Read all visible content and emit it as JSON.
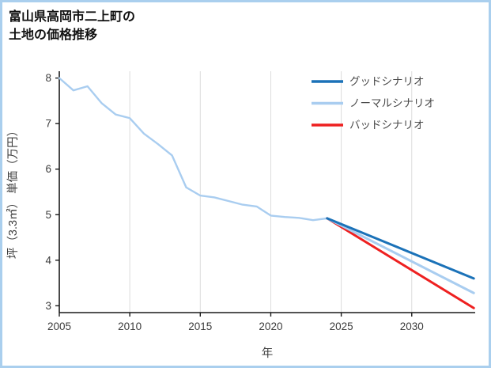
{
  "title": {
    "line1": "富山県高岡市二上町の",
    "line2": "土地の価格推移"
  },
  "frame": {
    "border_color": "#aacfee",
    "background": "#ffffff"
  },
  "chart_data": {
    "type": "line",
    "title": "富山県高岡市二上町の土地の価格推移",
    "xlabel": "年",
    "ylabel": "坪（3.3㎡） 単価（万円）",
    "xlim": [
      2005,
      2034.5
    ],
    "ylim": [
      2.85,
      8.15
    ],
    "x_ticks": [
      2005,
      2010,
      2015,
      2020,
      2025,
      2030
    ],
    "y_ticks": [
      3,
      4,
      5,
      6,
      7,
      8
    ],
    "grid": {
      "vertical": true,
      "horizontal": false,
      "color": "#dcdcdc"
    },
    "axis": {
      "spine_color": "#1a1a1a",
      "tick_label_color": "#3c3c3c"
    },
    "legend": {
      "position": "top-right",
      "text_color": "#4a4a4a"
    },
    "series": [
      {
        "id": "historical",
        "label": "",
        "show_in_legend": false,
        "color": "#a9cdf0",
        "stroke_width": 2.4,
        "x": [
          2005,
          2006,
          2007,
          2008,
          2009,
          2010,
          2011,
          2012,
          2013,
          2014,
          2015,
          2016,
          2017,
          2018,
          2019,
          2020,
          2021,
          2022,
          2023,
          2024
        ],
        "y": [
          8.0,
          7.73,
          7.82,
          7.45,
          7.2,
          7.12,
          6.78,
          6.55,
          6.3,
          5.6,
          5.42,
          5.38,
          5.3,
          5.22,
          5.18,
          4.98,
          4.95,
          4.93,
          4.88,
          4.92
        ]
      },
      {
        "id": "bad",
        "label": "バッドシナリオ",
        "show_in_legend": true,
        "color": "#ee2020",
        "stroke_width": 3,
        "x": [
          2024,
          2034.4
        ],
        "y": [
          4.92,
          2.95
        ]
      },
      {
        "id": "normal",
        "label": "ノーマルシナリオ",
        "show_in_legend": true,
        "color": "#a9cdf0",
        "stroke_width": 3,
        "x": [
          2024,
          2034.4
        ],
        "y": [
          4.92,
          3.28
        ]
      },
      {
        "id": "good",
        "label": "グッドシナリオ",
        "show_in_legend": true,
        "color": "#1b72b8",
        "stroke_width": 3,
        "x": [
          2024,
          2034.4
        ],
        "y": [
          4.92,
          3.6
        ]
      }
    ],
    "legend_order": [
      "good",
      "normal",
      "bad"
    ]
  }
}
